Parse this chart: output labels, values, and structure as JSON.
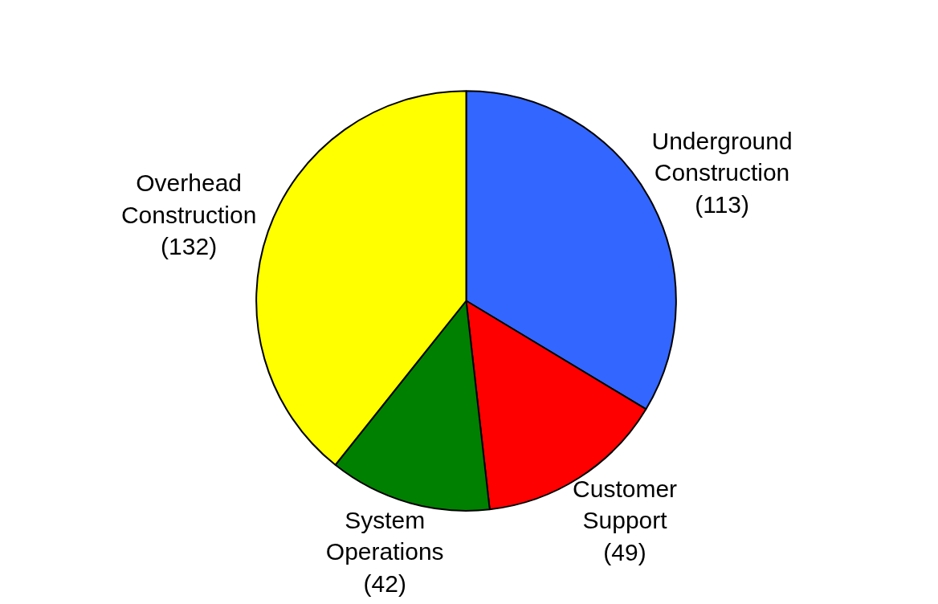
{
  "chart_data": {
    "type": "pie",
    "categories": [
      "Underground Construction",
      "Customer Support",
      "System Operations",
      "Overhead Construction"
    ],
    "values": [
      113,
      49,
      42,
      132
    ],
    "value_labels": [
      "(113)",
      "(49)",
      "(42)",
      "(132)"
    ],
    "colors": [
      "#3366ff",
      "#ff0000",
      "#008000",
      "#ffff00"
    ]
  }
}
